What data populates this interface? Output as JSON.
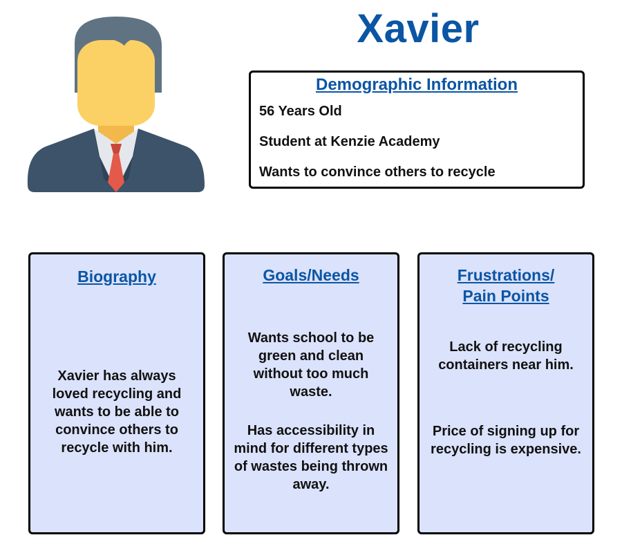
{
  "persona": {
    "name": "Xavier"
  },
  "demographics": {
    "heading": "Demographic Information",
    "age": "56 Years Old",
    "occupation": "Student at Kenzie Academy",
    "motivation": "Wants to convince others to recycle"
  },
  "biography": {
    "heading": "Biography",
    "text": "Xavier has always loved recycling and wants to be able to convince others to recycle with him."
  },
  "goals": {
    "heading": "Goals/Needs",
    "items": [
      "Wants school to be green and clean without too much waste.",
      "Has accessibility in mind for different types of wastes being thrown away."
    ]
  },
  "frustrations": {
    "heading_line1": "Frustrations/",
    "heading_line2": "Pain Points",
    "items": [
      "Lack of recycling containers near him.",
      "Price of signing up for recycling is expensive."
    ]
  },
  "colors": {
    "accent": "#0b55a4",
    "card_background": "#dbe2fb",
    "border": "#000000"
  },
  "icons": {
    "avatar": "businessman-avatar-icon"
  }
}
